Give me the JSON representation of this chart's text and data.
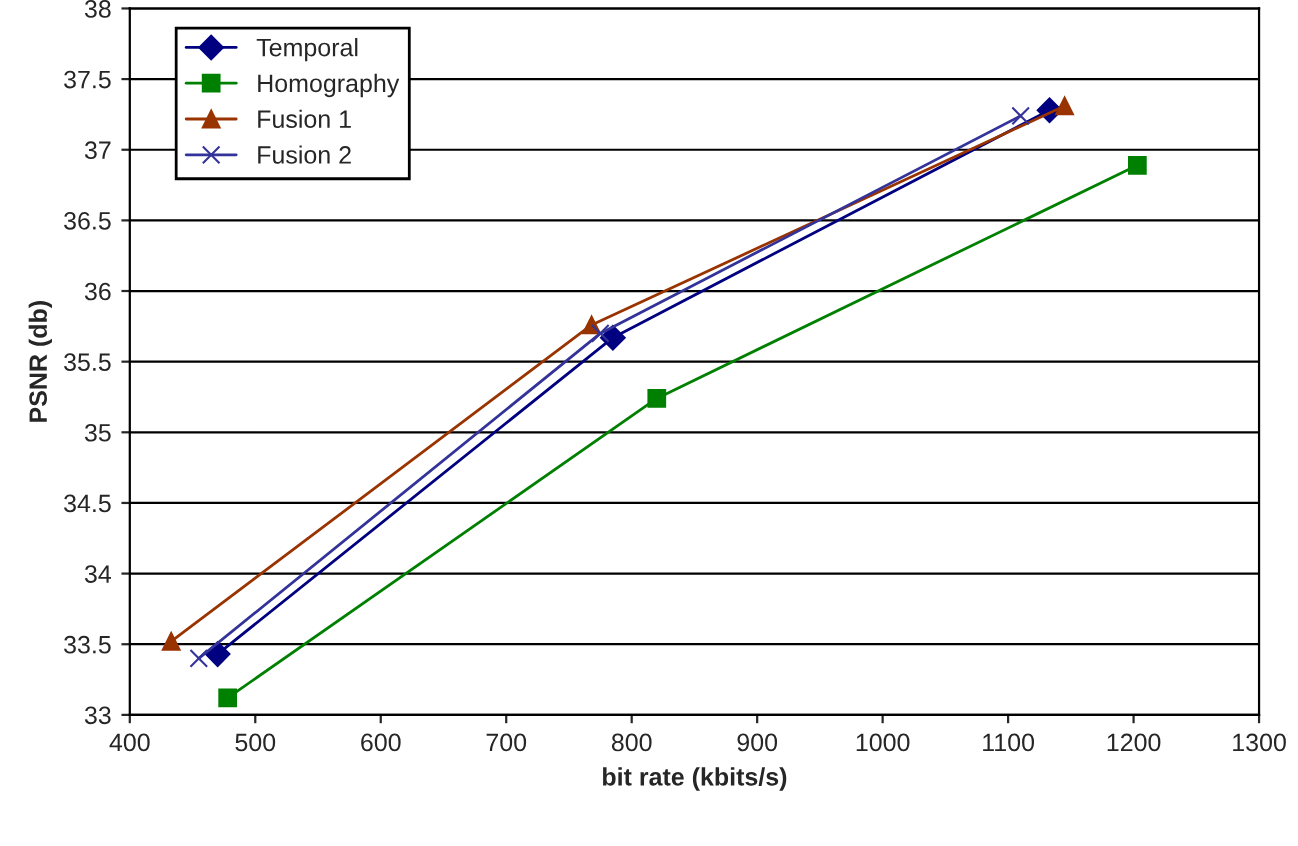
{
  "chart_data": {
    "type": "line",
    "xlabel": "bit rate (kbits/s)",
    "ylabel": "PSNR (db)",
    "xlim": [
      400,
      1300
    ],
    "xticks": [
      400,
      500,
      600,
      700,
      800,
      900,
      1000,
      1100,
      1200,
      1300
    ],
    "ylim": [
      33,
      38
    ],
    "yticks": [
      33,
      33.5,
      34,
      34.5,
      35,
      35.5,
      36,
      36.5,
      37,
      37.5,
      38
    ],
    "grid": "y",
    "legend": "top left",
    "line_style": "solid",
    "series": [
      {
        "name": "Temporal",
        "color": "#000080",
        "marker": "diamond",
        "x": [
          470,
          785,
          1133
        ],
        "values": [
          33.43,
          35.67,
          37.28
        ]
      },
      {
        "name": "Homography",
        "color": "#008000",
        "marker": "square",
        "x": [
          478,
          820,
          1203
        ],
        "values": [
          33.12,
          35.24,
          36.89
        ]
      },
      {
        "name": "Fusion 1",
        "color": "#993300",
        "marker": "triangle",
        "x": [
          433,
          768,
          1145
        ],
        "values": [
          33.52,
          35.76,
          37.31
        ]
      },
      {
        "name": "Fusion 2",
        "color": "#333399",
        "marker": "cross",
        "x": [
          455,
          775,
          1110
        ],
        "values": [
          33.4,
          35.7,
          37.24
        ]
      }
    ]
  }
}
